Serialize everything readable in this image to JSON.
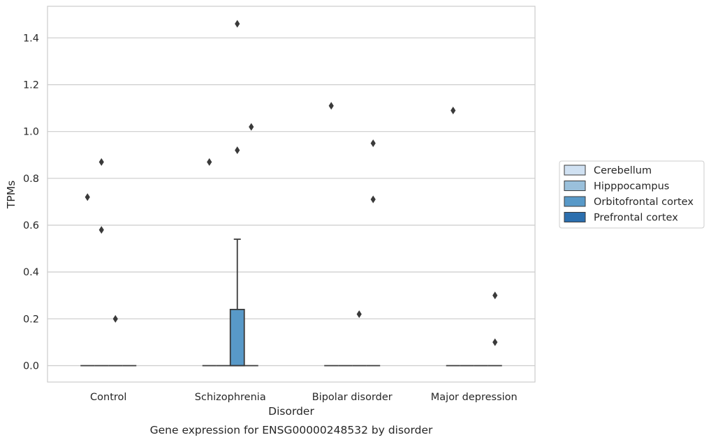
{
  "chart_data": {
    "type": "box",
    "xlabel": "Disorder",
    "ylabel": "TPMs",
    "caption": "Gene expression for ENSG00000248532 by disorder",
    "categories": [
      "Control",
      "Schizophrenia",
      "Bipolar disorder",
      "Major depression"
    ],
    "ylim": [
      -0.07,
      1.535
    ],
    "yticks": [
      0.0,
      0.2,
      0.4,
      0.6,
      0.8,
      1.0,
      1.2,
      1.4
    ],
    "ytick_labels": [
      "0.0",
      "0.2",
      "0.4",
      "0.6",
      "0.8",
      "1.0",
      "1.2",
      "1.4"
    ],
    "grid": true,
    "legend_position": "right",
    "series": [
      {
        "name": "Cerebellum",
        "color": "#d0e1f2",
        "boxes": [
          {
            "category": "Control",
            "q1": 0,
            "median": 0,
            "q3": 0,
            "whisker_low": 0,
            "whisker_high": 0,
            "outliers": [
              0.72
            ]
          },
          {
            "category": "Schizophrenia",
            "q1": 0,
            "median": 0,
            "q3": 0,
            "whisker_low": 0,
            "whisker_high": 0,
            "outliers": [
              0.87
            ]
          },
          {
            "category": "Bipolar disorder",
            "q1": 0,
            "median": 0,
            "q3": 0,
            "whisker_low": 0,
            "whisker_high": 0,
            "outliers": [
              1.11
            ]
          },
          {
            "category": "Major depression",
            "q1": 0,
            "median": 0,
            "q3": 0,
            "whisker_low": 0,
            "whisker_high": 0,
            "outliers": [
              1.09
            ]
          }
        ]
      },
      {
        "name": "Hipppocampus",
        "color": "#9ac0db",
        "boxes": [
          {
            "category": "Control",
            "q1": 0,
            "median": 0,
            "q3": 0,
            "whisker_low": 0,
            "whisker_high": 0,
            "outliers": [
              0.87,
              0.58
            ]
          },
          {
            "category": "Schizophrenia",
            "q1": 0,
            "median": 0,
            "q3": 0,
            "whisker_low": 0,
            "whisker_high": 0,
            "outliers": []
          },
          {
            "category": "Bipolar disorder",
            "q1": 0,
            "median": 0,
            "q3": 0,
            "whisker_low": 0,
            "whisker_high": 0,
            "outliers": []
          },
          {
            "category": "Major depression",
            "q1": 0,
            "median": 0,
            "q3": 0,
            "whisker_low": 0,
            "whisker_high": 0,
            "outliers": []
          }
        ]
      },
      {
        "name": "Orbitofrontal cortex",
        "color": "#5899c8",
        "boxes": [
          {
            "category": "Control",
            "q1": 0,
            "median": 0,
            "q3": 0,
            "whisker_low": 0,
            "whisker_high": 0,
            "outliers": [
              0.2
            ]
          },
          {
            "category": "Schizophrenia",
            "q1": 0,
            "median": 0,
            "q3": 0.24,
            "whisker_low": 0,
            "whisker_high": 0.54,
            "outliers": [
              1.46,
              0.92
            ]
          },
          {
            "category": "Bipolar disorder",
            "q1": 0,
            "median": 0,
            "q3": 0,
            "whisker_low": 0,
            "whisker_high": 0,
            "outliers": [
              0.22
            ]
          },
          {
            "category": "Major depression",
            "q1": 0,
            "median": 0,
            "q3": 0,
            "whisker_low": 0,
            "whisker_high": 0,
            "outliers": []
          }
        ]
      },
      {
        "name": "Prefrontal cortex",
        "color": "#2c6fae",
        "boxes": [
          {
            "category": "Control",
            "q1": 0,
            "median": 0,
            "q3": 0,
            "whisker_low": 0,
            "whisker_high": 0,
            "outliers": []
          },
          {
            "category": "Schizophrenia",
            "q1": 0,
            "median": 0,
            "q3": 0,
            "whisker_low": 0,
            "whisker_high": 0,
            "outliers": [
              1.02
            ]
          },
          {
            "category": "Bipolar disorder",
            "q1": 0,
            "median": 0,
            "q3": 0,
            "whisker_low": 0,
            "whisker_high": 0,
            "outliers": [
              0.95,
              0.71
            ]
          },
          {
            "category": "Major depression",
            "q1": 0,
            "median": 0,
            "q3": 0,
            "whisker_low": 0,
            "whisker_high": 0,
            "outliers": [
              0.3,
              0.1
            ]
          }
        ]
      }
    ],
    "colors": {
      "grid": "#cccccc",
      "frame": "#cccccc",
      "stroke": "#3a3a3a"
    }
  }
}
